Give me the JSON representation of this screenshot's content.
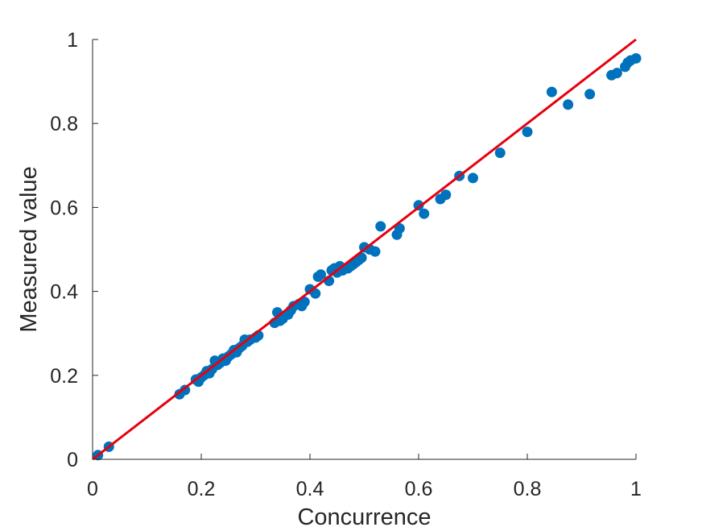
{
  "chart_data": {
    "type": "scatter",
    "title": "",
    "xlabel": "Concurrence",
    "ylabel": "Measured value",
    "xlim": [
      0,
      1
    ],
    "ylim": [
      0,
      1
    ],
    "xticks": [
      "0",
      "0.2",
      "0.4",
      "0.6",
      "0.8",
      "1"
    ],
    "yticks": [
      "0",
      "0.2",
      "0.4",
      "0.6",
      "0.8",
      "1"
    ],
    "grid": false,
    "series": [
      {
        "kind": "points",
        "color": "#0072BD",
        "points": [
          [
            0.01,
            0.01
          ],
          [
            0.03,
            0.03
          ],
          [
            0.16,
            0.155
          ],
          [
            0.17,
            0.165
          ],
          [
            0.19,
            0.19
          ],
          [
            0.195,
            0.185
          ],
          [
            0.2,
            0.195
          ],
          [
            0.205,
            0.2
          ],
          [
            0.21,
            0.21
          ],
          [
            0.215,
            0.205
          ],
          [
            0.22,
            0.215
          ],
          [
            0.225,
            0.235
          ],
          [
            0.23,
            0.225
          ],
          [
            0.235,
            0.23
          ],
          [
            0.24,
            0.24
          ],
          [
            0.245,
            0.235
          ],
          [
            0.25,
            0.245
          ],
          [
            0.255,
            0.25
          ],
          [
            0.26,
            0.26
          ],
          [
            0.265,
            0.255
          ],
          [
            0.27,
            0.265
          ],
          [
            0.275,
            0.27
          ],
          [
            0.28,
            0.285
          ],
          [
            0.285,
            0.28
          ],
          [
            0.29,
            0.285
          ],
          [
            0.3,
            0.29
          ],
          [
            0.305,
            0.295
          ],
          [
            0.335,
            0.325
          ],
          [
            0.34,
            0.35
          ],
          [
            0.345,
            0.33
          ],
          [
            0.35,
            0.335
          ],
          [
            0.36,
            0.345
          ],
          [
            0.365,
            0.355
          ],
          [
            0.37,
            0.365
          ],
          [
            0.38,
            0.37
          ],
          [
            0.385,
            0.365
          ],
          [
            0.39,
            0.375
          ],
          [
            0.4,
            0.405
          ],
          [
            0.41,
            0.395
          ],
          [
            0.415,
            0.435
          ],
          [
            0.42,
            0.44
          ],
          [
            0.435,
            0.425
          ],
          [
            0.44,
            0.45
          ],
          [
            0.445,
            0.455
          ],
          [
            0.45,
            0.445
          ],
          [
            0.455,
            0.46
          ],
          [
            0.46,
            0.45
          ],
          [
            0.465,
            0.455
          ],
          [
            0.47,
            0.455
          ],
          [
            0.475,
            0.46
          ],
          [
            0.48,
            0.465
          ],
          [
            0.485,
            0.47
          ],
          [
            0.49,
            0.475
          ],
          [
            0.495,
            0.48
          ],
          [
            0.5,
            0.505
          ],
          [
            0.51,
            0.5
          ],
          [
            0.52,
            0.495
          ],
          [
            0.53,
            0.555
          ],
          [
            0.56,
            0.535
          ],
          [
            0.565,
            0.55
          ],
          [
            0.6,
            0.605
          ],
          [
            0.61,
            0.585
          ],
          [
            0.64,
            0.62
          ],
          [
            0.65,
            0.63
          ],
          [
            0.675,
            0.675
          ],
          [
            0.7,
            0.67
          ],
          [
            0.75,
            0.73
          ],
          [
            0.8,
            0.78
          ],
          [
            0.845,
            0.875
          ],
          [
            0.875,
            0.845
          ],
          [
            0.915,
            0.87
          ],
          [
            0.955,
            0.915
          ],
          [
            0.965,
            0.92
          ],
          [
            0.98,
            0.935
          ],
          [
            0.985,
            0.945
          ],
          [
            0.99,
            0.95
          ],
          [
            1.0,
            0.955
          ]
        ]
      },
      {
        "kind": "line",
        "color": "#E6000E",
        "points": [
          [
            0,
            0
          ],
          [
            1,
            1
          ]
        ]
      }
    ]
  }
}
